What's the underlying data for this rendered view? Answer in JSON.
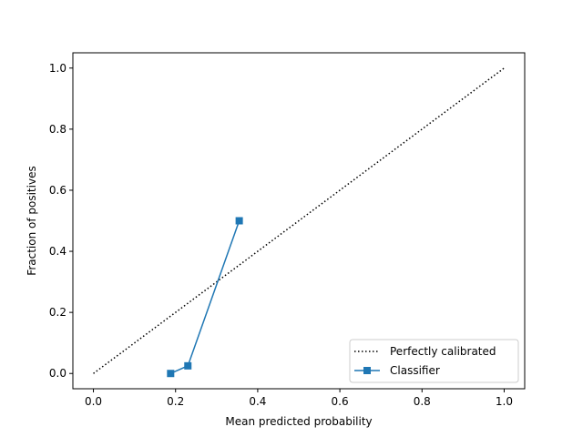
{
  "chart_data": {
    "type": "line",
    "title": "",
    "xlabel": "Mean predicted probability",
    "ylabel": "Fraction of positives",
    "xlim": [
      -0.05,
      1.05
    ],
    "ylim": [
      -0.05,
      1.05
    ],
    "xticks": [
      0.0,
      0.2,
      0.4,
      0.6,
      0.8,
      1.0
    ],
    "yticks": [
      0.0,
      0.2,
      0.4,
      0.6,
      0.8,
      1.0
    ],
    "xtick_labels": [
      "0.0",
      "0.2",
      "0.4",
      "0.6",
      "0.8",
      "1.0"
    ],
    "ytick_labels": [
      "0.0",
      "0.2",
      "0.4",
      "0.6",
      "0.8",
      "1.0"
    ],
    "grid": false,
    "legend_position": "lower-right",
    "series": [
      {
        "name": "Perfectly calibrated",
        "style": "dotted",
        "color": "#000000",
        "marker": "none",
        "x": [
          0.0,
          1.0
        ],
        "y": [
          0.0,
          1.0
        ]
      },
      {
        "name": "Classifier",
        "style": "solid",
        "color": "#1f77b4",
        "marker": "square",
        "x": [
          0.188,
          0.23,
          0.355
        ],
        "y": [
          0.0,
          0.025,
          0.5
        ]
      }
    ]
  }
}
